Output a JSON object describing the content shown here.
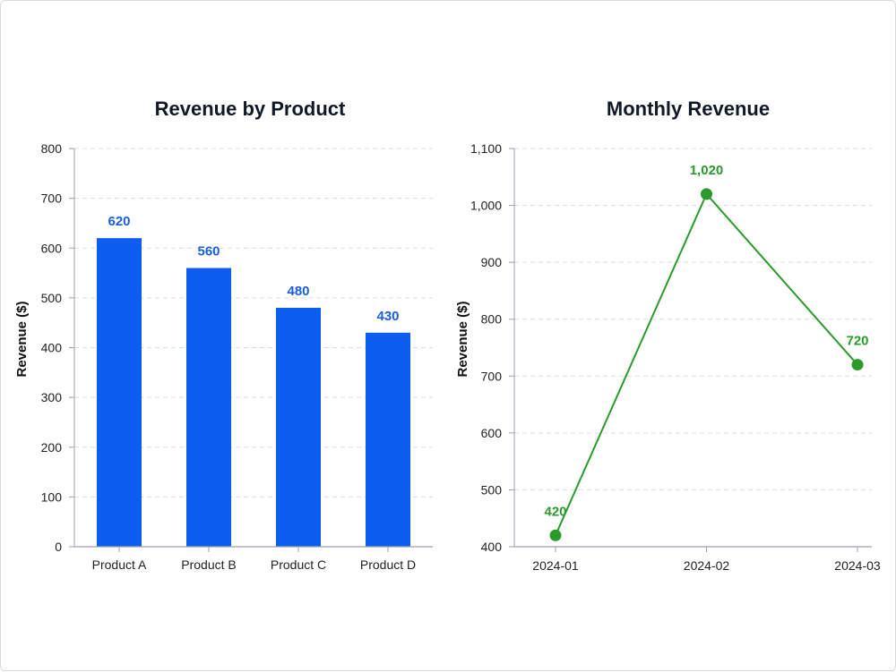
{
  "colors": {
    "bar": "#0d5ef0",
    "bar_label": "#1a5fd8",
    "line": "#2a9a2a",
    "axis": "#9aa0aa",
    "grid": "#d9dce1"
  },
  "chart_data": [
    {
      "type": "bar",
      "title": "Revenue by Product",
      "xlabel": "",
      "ylabel": "Revenue ($)",
      "categories": [
        "Product A",
        "Product B",
        "Product C",
        "Product D"
      ],
      "values": [
        620,
        560,
        480,
        430
      ],
      "data_labels": [
        "620",
        "560",
        "480",
        "430"
      ],
      "ylim": [
        0,
        800
      ],
      "yticks": [
        0,
        100,
        200,
        300,
        400,
        500,
        600,
        700,
        800
      ],
      "ytick_labels": [
        "0",
        "100",
        "200",
        "300",
        "400",
        "500",
        "600",
        "700",
        "800"
      ],
      "grid": "horizontal-dashed",
      "legend": "none"
    },
    {
      "type": "line",
      "title": "Monthly Revenue",
      "xlabel": "",
      "ylabel": "Revenue ($)",
      "x": [
        "2024-01",
        "2024-02",
        "2024-03"
      ],
      "values": [
        420,
        1020,
        720
      ],
      "data_labels": [
        "420",
        "1,020",
        "720"
      ],
      "ylim": [
        400,
        1100
      ],
      "yticks": [
        400,
        500,
        600,
        700,
        800,
        900,
        1000,
        1100
      ],
      "ytick_labels": [
        "400",
        "500",
        "600",
        "700",
        "800",
        "900",
        "1,000",
        "1,100"
      ],
      "grid": "horizontal-dashed",
      "legend": "none"
    }
  ]
}
